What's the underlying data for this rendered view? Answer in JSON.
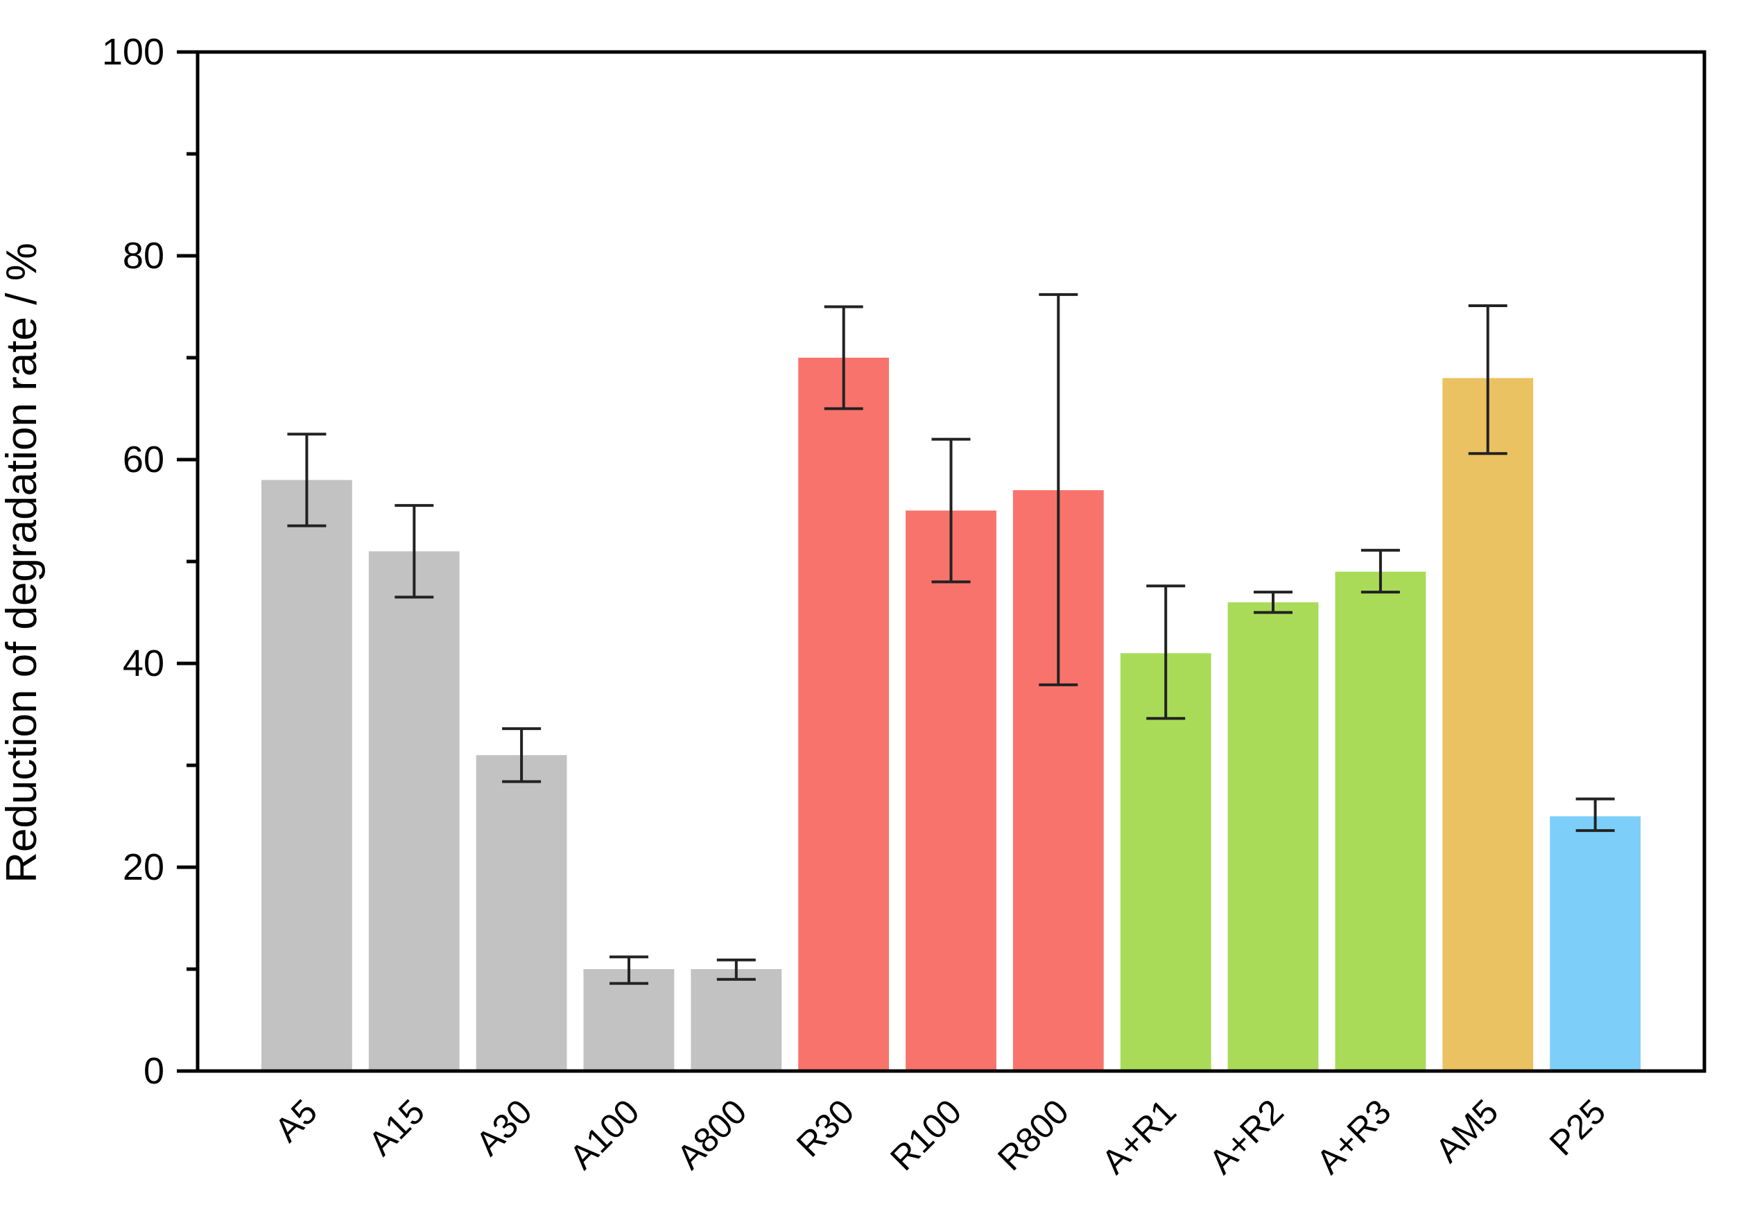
{
  "figure": {
    "background": "#ffffff",
    "frame_color": "#000000",
    "error_bar_color": "#222222"
  },
  "chart_data": {
    "type": "bar",
    "title": "",
    "xlabel": "",
    "ylabel": "Reduction of degradation rate / %",
    "ylim": [
      0,
      100
    ],
    "y_major_ticks": [
      0,
      20,
      40,
      60,
      80,
      100
    ],
    "y_tick_labels": [
      "0",
      "20",
      "40",
      "60",
      "80",
      "100"
    ],
    "y_minor_ticks": [
      10,
      30,
      50,
      70,
      90
    ],
    "grid": false,
    "legend_position": "none",
    "categories": [
      "A5",
      "A15",
      "A30",
      "A100",
      "A800",
      "R30",
      "R100",
      "R800",
      "A+R1",
      "A+R2",
      "A+R3",
      "AM5",
      "P25"
    ],
    "values": [
      58,
      51,
      31,
      10,
      10,
      70,
      55,
      57,
      41,
      46,
      49,
      68,
      25
    ],
    "error_plus": [
      4.5,
      4.5,
      2.6,
      1.2,
      0.9,
      5,
      7,
      19.2,
      6.6,
      1.0,
      2.1,
      7.1,
      1.7
    ],
    "error_minus": [
      4.5,
      4.5,
      2.6,
      1.4,
      1.0,
      5,
      7,
      19.1,
      6.4,
      1.0,
      2.0,
      7.4,
      1.4
    ],
    "bar_colors": [
      "#C2C2C2",
      "#C2C2C2",
      "#C2C2C2",
      "#C2C2C2",
      "#C2C2C2",
      "#F8736C",
      "#F8736C",
      "#F8736C",
      "#A9DB58",
      "#A9DB58",
      "#A9DB58",
      "#EBC261",
      "#7DCFF9"
    ],
    "color_groups": {
      "gray": "#C2C2C2",
      "red": "#F8736C",
      "green": "#A9DB58",
      "orange": "#EBC261",
      "blue": "#7DCFF9"
    }
  }
}
